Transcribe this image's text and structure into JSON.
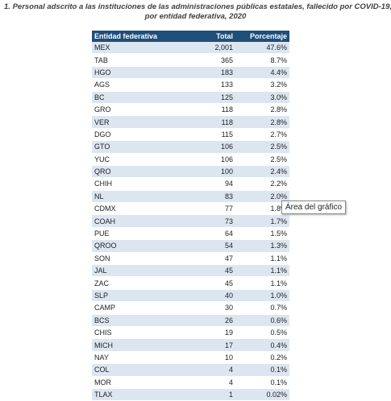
{
  "header": {
    "title_line1": "1. Personal adscrito a las instituciones de las administraciones públicas estatales, fallecido por COVID-19,",
    "title_line2": "por entidad federativa, 2020"
  },
  "table": {
    "headers": [
      "Entidad federativa",
      "Total",
      "Porcentaje"
    ],
    "rows": [
      [
        "MEX",
        "2,001",
        "47.6%"
      ],
      [
        "TAB",
        "365",
        "8.7%"
      ],
      [
        "HGO",
        "183",
        "4.4%"
      ],
      [
        "AGS",
        "133",
        "3.2%"
      ],
      [
        "BC",
        "125",
        "3.0%"
      ],
      [
        "GRO",
        "118",
        "2.8%"
      ],
      [
        "VER",
        "118",
        "2.8%"
      ],
      [
        "DGO",
        "115",
        "2.7%"
      ],
      [
        "GTO",
        "106",
        "2.5%"
      ],
      [
        "YUC",
        "106",
        "2.5%"
      ],
      [
        "QRO",
        "100",
        "2.4%"
      ],
      [
        "CHIH",
        "94",
        "2.2%"
      ],
      [
        "NL",
        "83",
        "2.0%"
      ],
      [
        "CDMX",
        "77",
        "1.8%"
      ],
      [
        "COAH",
        "73",
        "1.7%"
      ],
      [
        "PUE",
        "64",
        "1.5%"
      ],
      [
        "QROO",
        "54",
        "1.3%"
      ],
      [
        "SON",
        "47",
        "1.1%"
      ],
      [
        "JAL",
        "45",
        "1.1%"
      ],
      [
        "ZAC",
        "45",
        "1.1%"
      ],
      [
        "SLP",
        "40",
        "1.0%"
      ],
      [
        "CAMP",
        "30",
        "0.7%"
      ],
      [
        "BCS",
        "26",
        "0.6%"
      ],
      [
        "CHIS",
        "19",
        "0.5%"
      ],
      [
        "MICH",
        "17",
        "0.4%"
      ],
      [
        "NAY",
        "10",
        "0.2%"
      ],
      [
        "COL",
        "4",
        "0.1%"
      ],
      [
        "MOR",
        "4",
        "0.1%"
      ],
      [
        "TLAX",
        "1",
        "0.02%"
      ]
    ]
  },
  "tooltip": "Área del gráfico"
}
